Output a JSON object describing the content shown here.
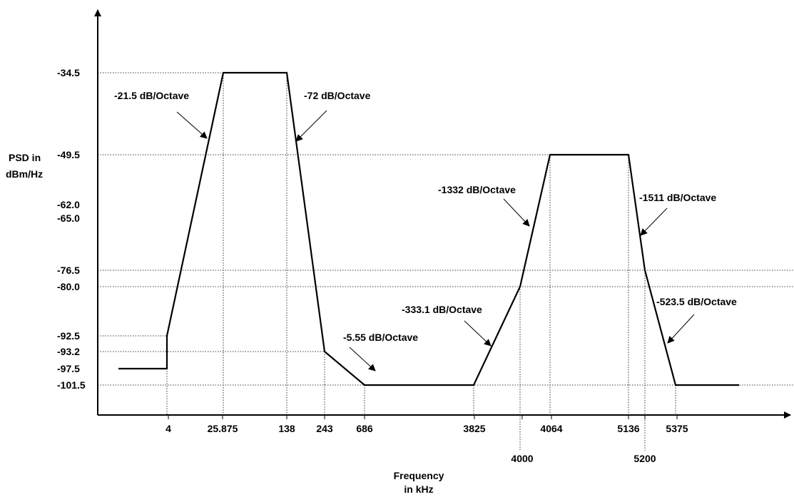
{
  "chart_data": {
    "type": "line",
    "title": "",
    "ylabel": [
      "PSD in",
      "dBm/Hz"
    ],
    "xlabel": [
      "Frequency",
      "in kHz"
    ],
    "x_scale": "categorical-log-like",
    "y_ticks": [
      "-34.5",
      "-49.5",
      "-62.0",
      "-65.0",
      "-76.5",
      "-80.0",
      "-92.5",
      "-93.2",
      "-97.5",
      "-101.5"
    ],
    "x_ticks": [
      "4",
      "25.875",
      "138",
      "243",
      "686",
      "3825",
      "4000",
      "4064",
      "5136",
      "5200",
      "5375"
    ],
    "series": [
      {
        "points": [
          {
            "x": 0,
            "y": -97.5
          },
          {
            "x": 4,
            "y": -97.5
          },
          {
            "x": 4,
            "y": -92.5
          },
          {
            "x": 25.875,
            "y": -34.5
          },
          {
            "x": 138,
            "y": -34.5
          },
          {
            "x": 243,
            "y": -93.2
          },
          {
            "x": 686,
            "y": -101.5
          },
          {
            "x": 3825,
            "y": -101.5
          },
          {
            "x": 4000,
            "y": -80.0
          },
          {
            "x": 4064,
            "y": -49.5
          },
          {
            "x": 5136,
            "y": -49.5
          },
          {
            "x": 5200,
            "y": -76.5
          },
          {
            "x": 5375,
            "y": -101.5
          },
          {
            "x": 5375,
            "y": -101.5
          }
        ]
      }
    ],
    "annotations": [
      "-21.5 dB/Octave",
      "-72 dB/Octave",
      "-5.55 dB/Octave",
      "-333.1 dB/Octave",
      "-1332 dB/Octave",
      "-1511 dB/Octave",
      "-523.5 dB/Octave"
    ],
    "grid": "dotted guide lines to tick values"
  }
}
